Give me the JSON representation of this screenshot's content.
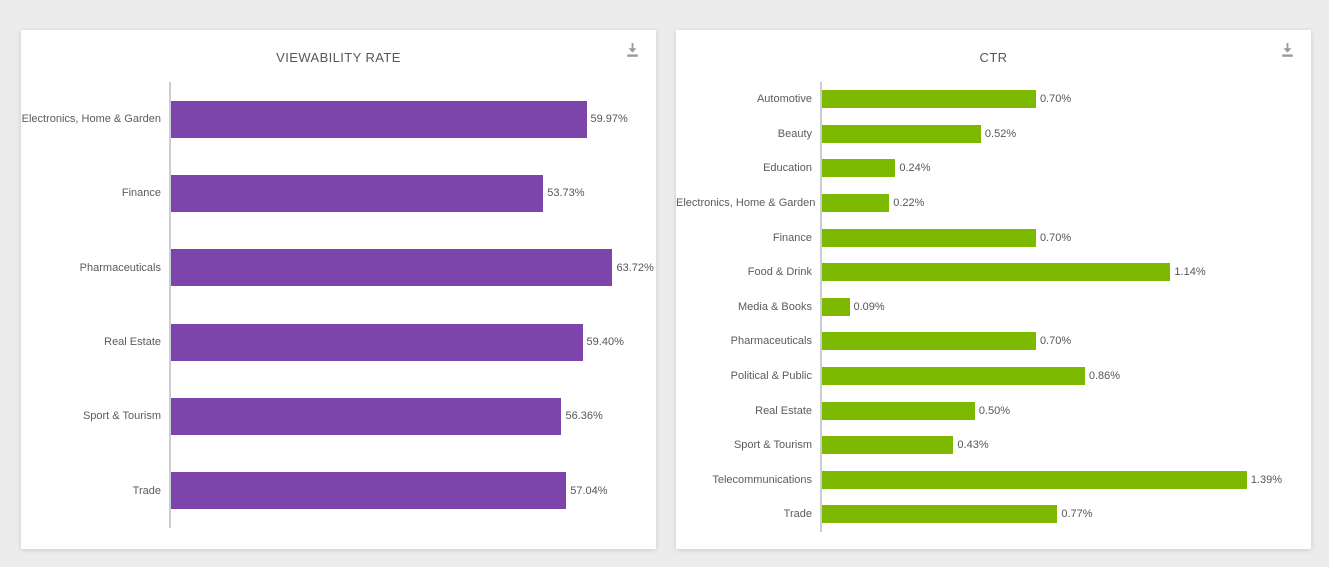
{
  "page": {
    "background_color": "#ececec",
    "card_color": "#ffffff"
  },
  "icons": {
    "download": "arrow-down-to-tray"
  },
  "colors": {
    "viewability_bar": "#7d45ac",
    "ctr_bar": "#7cb900",
    "axis_line": "#c9cdd4",
    "title_text": "#54585c",
    "label_text": "#5b5c5e",
    "value_text": "#55565a",
    "icon_gray": "#9b9b9b"
  },
  "chart_data": [
    {
      "type": "bar",
      "orientation": "horizontal",
      "title": "VIEWABILITY RATE",
      "categories": [
        "Electronics, Home & Garden",
        "Finance",
        "Pharmaceuticals",
        "Real Estate",
        "Sport & Tourism",
        "Trade"
      ],
      "values": [
        59.97,
        53.73,
        63.72,
        59.4,
        56.36,
        57.04
      ],
      "value_labels": [
        "59.97%",
        "53.73%",
        "63.72%",
        "59.40%",
        "56.36%",
        "57.04%"
      ],
      "xlim": [
        0,
        70
      ],
      "bar_color": "#7d45ac",
      "grid": false,
      "legend": "none",
      "axis_ticks": "none",
      "value_labels_position": "outside-end"
    },
    {
      "type": "bar",
      "orientation": "horizontal",
      "title": "CTR",
      "categories": [
        "Automotive",
        "Beauty",
        "Education",
        "Electronics, Home & Garden",
        "Finance",
        "Food & Drink",
        "Media & Books",
        "Pharmaceuticals",
        "Political & Public",
        "Real Estate",
        "Sport & Tourism",
        "Telecommunications",
        "Trade"
      ],
      "values": [
        0.7,
        0.52,
        0.24,
        0.22,
        0.7,
        1.14,
        0.09,
        0.7,
        0.86,
        0.5,
        0.43,
        1.39,
        0.77
      ],
      "value_labels": [
        "0.70%",
        "0.52%",
        "0.24%",
        "0.22%",
        "0.70%",
        "1.14%",
        "0.09%",
        "0.70%",
        "0.86%",
        "0.50%",
        "0.43%",
        "1.39%",
        "0.77%"
      ],
      "xlim": [
        0,
        1.6
      ],
      "bar_color": "#7cb900",
      "grid": false,
      "legend": "none",
      "axis_ticks": "none",
      "value_labels_position": "outside-end"
    }
  ]
}
